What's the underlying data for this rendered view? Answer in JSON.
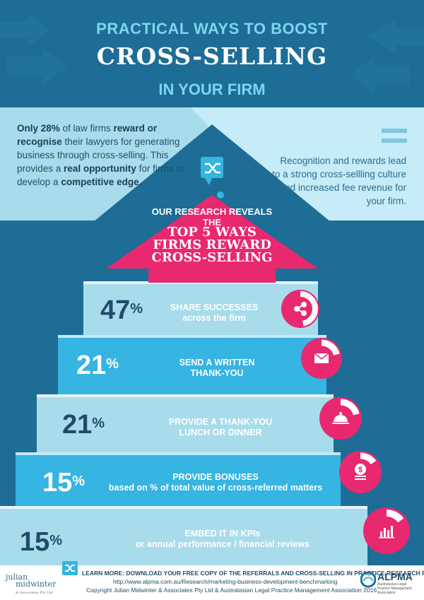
{
  "title": {
    "line1": "PRACTICAL WAYS TO BOOST",
    "line2": "CROSS-SELLING",
    "line3": "IN YOUR FIRM"
  },
  "intro_left": {
    "p1": "Only 28%",
    "p2": " of law firms ",
    "p3": "reward or recognise",
    "p4": " their lawyers for generating business through cross-selling.  This provides a ",
    "p5": "real opportunity",
    "p6": " for firms to develop a ",
    "p7": "competitive edge."
  },
  "intro_right": "Recognition and rewards lead to  a strong cross-sellling culture and increased fee revenue for your firm.",
  "arrow": {
    "research": "OUR RESEARCH REVEALS THE",
    "top_line1": "TOP 5 WAYS",
    "top_line2": "FIRMS REWARD",
    "top_line3": "CROSS-SELLING"
  },
  "steps": [
    {
      "value": "47",
      "unit": "%",
      "title": "SHARE SUCCESSES",
      "subtitle": "across the firm",
      "icon": "share-icon",
      "fraction": 0.47
    },
    {
      "value": "21",
      "unit": "%",
      "title": "SEND A WRITTEN",
      "subtitle": "THANK-YOU",
      "icon": "envelope-icon",
      "fraction": 0.21
    },
    {
      "value": "21",
      "unit": "%",
      "title": "PROVIDE A THANK-YOU",
      "subtitle": "LUNCH OR DINNER",
      "icon": "cloche-icon",
      "fraction": 0.21
    },
    {
      "value": "15",
      "unit": "%",
      "title": "PROVIDE BONUSES",
      "subtitle": "based on % of total value of cross-referred matters",
      "icon": "money-icon",
      "fraction": 0.15
    },
    {
      "value": "15",
      "unit": "%",
      "title": "EMBED IT IN KPIs",
      "subtitle": "or annual performance / financial reviews",
      "icon": "bar-chart-icon",
      "fraction": 0.15
    }
  ],
  "footer": {
    "brand_line1": "julian",
    "brand_line2": "midwinter",
    "brand_line3": "& Associates Pty Ltd",
    "learn_more": "LEARN MORE: DOWNLOAD YOUR FREE COPY OF THE REFERRALS AND CROSS-SELLING IN PRACTICE RESEARCH REPORT",
    "url": "http://www.alpma.com.au/Research/marketing-business-development-benchmarking",
    "copyright": "Copyright Julian Midwinter & Associates Pty Ltd & Australasian Legal Practice Management Association 2016",
    "alpma": "ALPMA",
    "alpma_sub": "Australasian Legal Practice Management Association"
  },
  "colors": {
    "navy": "#1d6d97",
    "light_blue": "#7fd5ef",
    "pink": "#e8286f",
    "step_light": "#a8dceb",
    "step_mid": "#36b4e2"
  }
}
